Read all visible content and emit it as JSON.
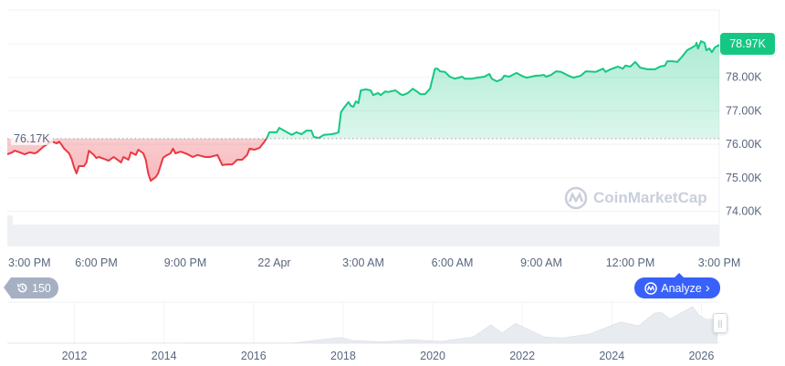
{
  "chart_data": {
    "type": "area",
    "baseline": {
      "label": "76.17K",
      "value": 76.17
    },
    "current_price": {
      "label": "78.97K",
      "value": 78.97
    },
    "y_axis": {
      "ticks": [
        "74.00K",
        "75.00K",
        "76.00K",
        "77.00K",
        "78.00K"
      ],
      "tick_values": [
        74,
        75,
        76,
        77,
        78
      ],
      "range": [
        73.0,
        79.75
      ],
      "position": "right",
      "grid": true
    },
    "x_axis": {
      "ticks": [
        "3:00 PM",
        "6:00 PM",
        "9:00 PM",
        "22 Apr",
        "3:00 AM",
        "6:00 AM",
        "9:00 AM",
        "12:00 PM",
        "3:00 PM"
      ],
      "tick_times": [
        "21 Apr 15:00",
        "21 Apr 18:00",
        "21 Apr 21:00",
        "22 Apr 00:00",
        "22 Apr 03:00",
        "22 Apr 06:00",
        "22 Apr 09:00",
        "22 Apr 12:00",
        "22 Apr 15:00"
      ]
    },
    "colors": {
      "up": "#16c784",
      "down": "#ea3943",
      "axis_text": "#58667e",
      "grid": "#eff2f5"
    },
    "series": [
      {
        "unit": "K",
        "points": [
          [
            "21 Apr 15:00",
            75.7
          ],
          [
            "21 Apr 15:10",
            75.76
          ],
          [
            "21 Apr 15:15",
            75.81
          ],
          [
            "21 Apr 15:25",
            75.76
          ],
          [
            "21 Apr 15:35",
            75.7
          ],
          [
            "21 Apr 15:45",
            75.76
          ],
          [
            "21 Apr 15:55",
            75.73
          ],
          [
            "21 Apr 16:00",
            75.76
          ],
          [
            "21 Apr 16:15",
            75.95
          ],
          [
            "21 Apr 16:30",
            76.08
          ],
          [
            "21 Apr 16:40",
            76.03
          ],
          [
            "21 Apr 16:45",
            76.08
          ],
          [
            "21 Apr 16:50",
            75.98
          ],
          [
            "21 Apr 16:55",
            75.87
          ],
          [
            "21 Apr 17:05",
            75.73
          ],
          [
            "21 Apr 17:10",
            75.57
          ],
          [
            "21 Apr 17:15",
            75.32
          ],
          [
            "21 Apr 17:20",
            75.13
          ],
          [
            "21 Apr 17:25",
            75.35
          ],
          [
            "21 Apr 17:35",
            75.35
          ],
          [
            "21 Apr 17:40",
            75.46
          ],
          [
            "21 Apr 17:45",
            75.81
          ],
          [
            "21 Apr 17:55",
            75.68
          ],
          [
            "21 Apr 18:00",
            75.59
          ],
          [
            "21 Apr 18:05",
            75.62
          ],
          [
            "21 Apr 18:15",
            75.57
          ],
          [
            "21 Apr 18:25",
            75.51
          ],
          [
            "21 Apr 18:35",
            75.62
          ],
          [
            "21 Apr 18:40",
            75.57
          ],
          [
            "21 Apr 18:50",
            75.46
          ],
          [
            "21 Apr 18:55",
            75.62
          ],
          [
            "21 Apr 19:05",
            75.54
          ],
          [
            "21 Apr 19:10",
            75.76
          ],
          [
            "21 Apr 19:20",
            75.68
          ],
          [
            "21 Apr 19:25",
            75.84
          ],
          [
            "21 Apr 19:35",
            75.73
          ],
          [
            "21 Apr 19:40",
            75.54
          ],
          [
            "21 Apr 19:45",
            75.13
          ],
          [
            "21 Apr 19:50",
            74.91
          ],
          [
            "21 Apr 20:00",
            75.02
          ],
          [
            "21 Apr 20:05",
            75.13
          ],
          [
            "21 Apr 20:15",
            75.59
          ],
          [
            "21 Apr 20:20",
            75.65
          ],
          [
            "21 Apr 20:30",
            75.73
          ],
          [
            "21 Apr 20:35",
            75.87
          ],
          [
            "21 Apr 20:40",
            75.73
          ],
          [
            "21 Apr 20:50",
            75.78
          ],
          [
            "21 Apr 20:55",
            75.76
          ],
          [
            "21 Apr 21:05",
            75.7
          ],
          [
            "21 Apr 21:15",
            75.62
          ],
          [
            "21 Apr 21:25",
            75.68
          ],
          [
            "21 Apr 21:40",
            75.62
          ],
          [
            "21 Apr 21:50",
            75.62
          ],
          [
            "21 Apr 22:05",
            75.68
          ],
          [
            "21 Apr 22:15",
            75.38
          ],
          [
            "21 Apr 22:25",
            75.4
          ],
          [
            "21 Apr 22:35",
            75.4
          ],
          [
            "21 Apr 22:45",
            75.54
          ],
          [
            "21 Apr 22:55",
            75.54
          ],
          [
            "21 Apr 23:05",
            75.68
          ],
          [
            "21 Apr 23:10",
            75.87
          ],
          [
            "21 Apr 23:20",
            75.84
          ],
          [
            "21 Apr 23:30",
            75.89
          ],
          [
            "21 Apr 23:40",
            76.08
          ],
          [
            "21 Apr 23:45",
            76.19
          ],
          [
            "21 Apr 23:50",
            76.36
          ],
          [
            "22 Apr 00:05",
            76.36
          ],
          [
            "22 Apr 00:10",
            76.49
          ],
          [
            "22 Apr 00:20",
            76.41
          ],
          [
            "22 Apr 00:35",
            76.28
          ],
          [
            "22 Apr 00:45",
            76.36
          ],
          [
            "22 Apr 00:55",
            76.3
          ],
          [
            "22 Apr 01:05",
            76.41
          ],
          [
            "22 Apr 01:15",
            76.41
          ],
          [
            "22 Apr 01:20",
            76.22
          ],
          [
            "22 Apr 01:30",
            76.19
          ],
          [
            "22 Apr 01:40",
            76.28
          ],
          [
            "22 Apr 01:55",
            76.3
          ],
          [
            "22 Apr 02:05",
            76.33
          ],
          [
            "22 Apr 02:10",
            76.36
          ],
          [
            "22 Apr 02:15",
            76.96
          ],
          [
            "22 Apr 02:20",
            77.07
          ],
          [
            "22 Apr 02:30",
            77.26
          ],
          [
            "22 Apr 02:35",
            77.15
          ],
          [
            "22 Apr 02:40",
            77.12
          ],
          [
            "22 Apr 02:45",
            77.28
          ],
          [
            "22 Apr 02:50",
            77.23
          ],
          [
            "22 Apr 02:55",
            77.61
          ],
          [
            "22 Apr 03:05",
            77.64
          ],
          [
            "22 Apr 03:15",
            77.61
          ],
          [
            "22 Apr 03:20",
            77.47
          ],
          [
            "22 Apr 03:30",
            77.53
          ],
          [
            "22 Apr 03:35",
            77.47
          ],
          [
            "22 Apr 03:45",
            77.58
          ],
          [
            "22 Apr 03:50",
            77.56
          ],
          [
            "22 Apr 04:05",
            77.61
          ],
          [
            "22 Apr 04:15",
            77.5
          ],
          [
            "22 Apr 04:20",
            77.47
          ],
          [
            "22 Apr 04:30",
            77.53
          ],
          [
            "22 Apr 04:40",
            77.66
          ],
          [
            "22 Apr 04:50",
            77.56
          ],
          [
            "22 Apr 04:55",
            77.5
          ],
          [
            "22 Apr 05:05",
            77.5
          ],
          [
            "22 Apr 05:10",
            77.58
          ],
          [
            "22 Apr 05:15",
            77.66
          ],
          [
            "22 Apr 05:25",
            78.26
          ],
          [
            "22 Apr 05:30",
            78.26
          ],
          [
            "22 Apr 05:35",
            78.18
          ],
          [
            "22 Apr 05:45",
            78.16
          ],
          [
            "22 Apr 05:55",
            78.02
          ],
          [
            "22 Apr 06:05",
            77.96
          ],
          [
            "22 Apr 06:20",
            78.02
          ],
          [
            "22 Apr 06:25",
            77.96
          ],
          [
            "22 Apr 06:40",
            77.96
          ],
          [
            "22 Apr 06:50",
            77.99
          ],
          [
            "22 Apr 07:05",
            78.02
          ],
          [
            "22 Apr 07:15",
            78.1
          ],
          [
            "22 Apr 07:20",
            77.96
          ],
          [
            "22 Apr 07:30",
            77.88
          ],
          [
            "22 Apr 07:40",
            77.94
          ],
          [
            "22 Apr 07:45",
            78.05
          ],
          [
            "22 Apr 07:55",
            78.02
          ],
          [
            "22 Apr 08:10",
            78.13
          ],
          [
            "22 Apr 08:20",
            78.05
          ],
          [
            "22 Apr 08:30",
            77.99
          ],
          [
            "22 Apr 08:40",
            78.02
          ],
          [
            "22 Apr 08:50",
            78.05
          ],
          [
            "22 Apr 08:55",
            78.05
          ],
          [
            "22 Apr 09:05",
            78.07
          ],
          [
            "22 Apr 09:10",
            78.02
          ],
          [
            "22 Apr 09:20",
            78.07
          ],
          [
            "22 Apr 09:30",
            78.18
          ],
          [
            "22 Apr 09:40",
            78.16
          ],
          [
            "22 Apr 09:55",
            78.05
          ],
          [
            "22 Apr 10:05",
            77.99
          ],
          [
            "22 Apr 10:20",
            78.05
          ],
          [
            "22 Apr 10:30",
            78.18
          ],
          [
            "22 Apr 10:50",
            78.16
          ],
          [
            "22 Apr 11:05",
            78.26
          ],
          [
            "22 Apr 11:10",
            78.16
          ],
          [
            "22 Apr 11:20",
            78.24
          ],
          [
            "22 Apr 11:35",
            78.32
          ],
          [
            "22 Apr 11:45",
            78.26
          ],
          [
            "22 Apr 11:50",
            78.35
          ],
          [
            "22 Apr 12:00",
            78.32
          ],
          [
            "22 Apr 12:10",
            78.46
          ],
          [
            "22 Apr 12:20",
            78.29
          ],
          [
            "22 Apr 12:35",
            78.24
          ],
          [
            "22 Apr 12:50",
            78.24
          ],
          [
            "22 Apr 13:00",
            78.32
          ],
          [
            "22 Apr 13:10",
            78.35
          ],
          [
            "22 Apr 13:15",
            78.48
          ],
          [
            "22 Apr 13:25",
            78.48
          ],
          [
            "22 Apr 13:35",
            78.46
          ],
          [
            "22 Apr 13:45",
            78.62
          ],
          [
            "22 Apr 13:55",
            78.81
          ],
          [
            "22 Apr 14:05",
            78.89
          ],
          [
            "22 Apr 14:12",
            78.95
          ],
          [
            "22 Apr 14:14",
            79.03
          ],
          [
            "22 Apr 14:17",
            78.86
          ],
          [
            "22 Apr 14:23",
            79.08
          ],
          [
            "22 Apr 14:30",
            79.03
          ],
          [
            "22 Apr 14:34",
            78.81
          ],
          [
            "22 Apr 14:40",
            78.86
          ],
          [
            "22 Apr 14:45",
            78.75
          ],
          [
            "22 Apr 14:51",
            78.89
          ],
          [
            "22 Apr 15:00",
            78.97
          ]
        ]
      }
    ],
    "navigator": {
      "ticks": [
        "2012",
        "2014",
        "2016",
        "2018",
        "2020",
        "2022",
        "2024",
        "2026"
      ],
      "tick_years": [
        2012,
        2014,
        2016,
        2018,
        2020,
        2022,
        2024,
        2026
      ],
      "range_years": [
        2010.5,
        2026.4
      ],
      "points": [
        [
          2010.5,
          0
        ],
        [
          2016.9,
          1
        ],
        [
          2017.95,
          19
        ],
        [
          2018.2,
          9
        ],
        [
          2018.9,
          4
        ],
        [
          2019.5,
          11
        ],
        [
          2020.2,
          6
        ],
        [
          2020.9,
          20
        ],
        [
          2021.3,
          60
        ],
        [
          2021.55,
          33
        ],
        [
          2021.85,
          65
        ],
        [
          2022.5,
          20
        ],
        [
          2022.9,
          17
        ],
        [
          2023.5,
          30
        ],
        [
          2024.2,
          70
        ],
        [
          2024.6,
          57
        ],
        [
          2024.95,
          98
        ],
        [
          2025.1,
          102
        ],
        [
          2025.3,
          80
        ],
        [
          2025.8,
          120
        ],
        [
          2025.95,
          92
        ],
        [
          2026.1,
          78
        ],
        [
          2026.35,
          79
        ]
      ]
    }
  },
  "watermark": "CoinMarketCap",
  "history_badge": {
    "count": "150",
    "icon": "history-clock-icon"
  },
  "analyze_button": {
    "label": "Analyze",
    "icon": "cmc-logo-icon",
    "chevron": "›"
  }
}
